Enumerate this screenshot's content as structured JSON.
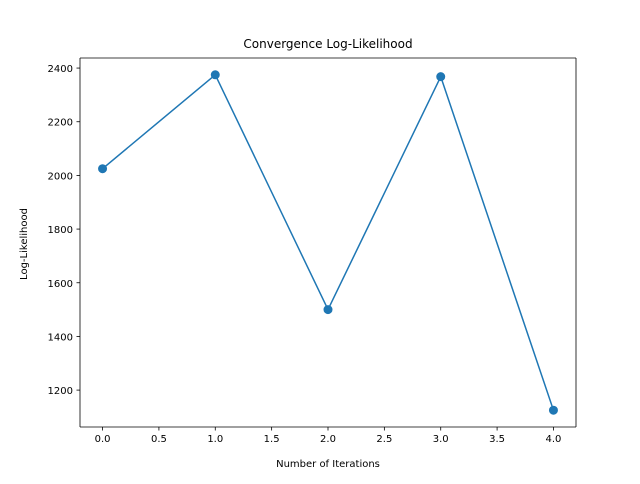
{
  "chart_data": {
    "type": "line",
    "title": "Convergence Log-Likelihood",
    "xlabel": "Number of Iterations",
    "ylabel": "Log-Likelihood",
    "x": [
      0,
      1,
      2,
      3,
      4
    ],
    "series": [
      {
        "values": [
          2025,
          2375,
          1500,
          2368,
          1125
        ],
        "color": "#1f77b4",
        "marker": "circle"
      }
    ],
    "xlim": [
      -0.2,
      4.2
    ],
    "ylim": [
      1062.5,
      2437.5
    ],
    "xticks": [
      0.0,
      0.5,
      1.0,
      1.5,
      2.0,
      2.5,
      3.0,
      3.5,
      4.0
    ],
    "xtick_labels": [
      "0.0",
      "0.5",
      "1.0",
      "1.5",
      "2.0",
      "2.5",
      "3.0",
      "3.5",
      "4.0"
    ],
    "yticks": [
      1200,
      1400,
      1600,
      1800,
      2000,
      2200,
      2400
    ],
    "ytick_labels": [
      "1200",
      "1400",
      "1600",
      "1800",
      "2000",
      "2200",
      "2400"
    ],
    "grid": false,
    "legend": false
  }
}
